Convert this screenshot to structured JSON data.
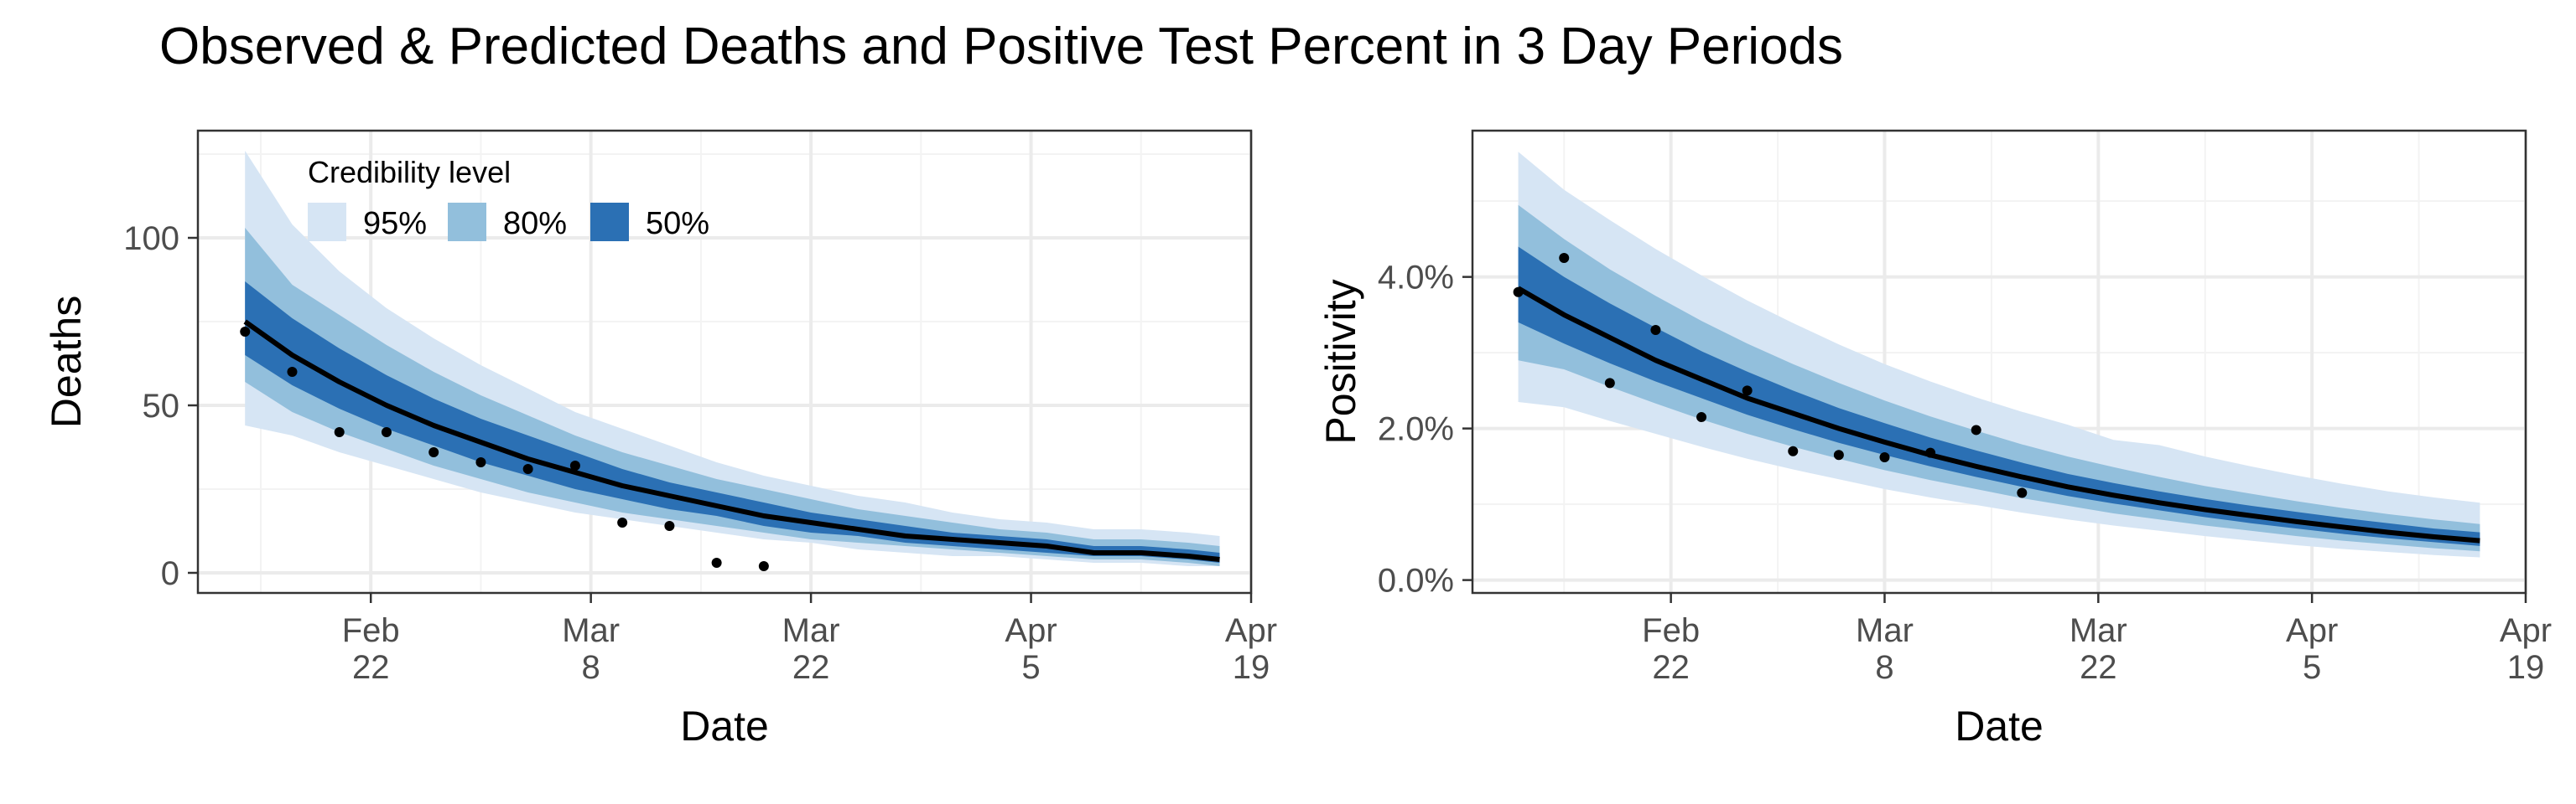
{
  "figure": {
    "title": "Observed & Predicted Deaths and Positive Test Percent in 3 Day Periods"
  },
  "colors": {
    "band_95": "#d6e5f4",
    "band_80": "#92bfdc",
    "band_50": "#2b70b4",
    "median_line": "#000000",
    "points": "#000000",
    "grid_major": "#ebebeb",
    "grid_minor": "#f3f3f3",
    "panel_border": "#333333",
    "tick_text": "#4d4d4d"
  },
  "legend": {
    "title": "Credibility level",
    "placement": "top-left inside deaths panel",
    "items": [
      {
        "label": "95%",
        "color_key": "band_95"
      },
      {
        "label": "80%",
        "color_key": "band_80"
      },
      {
        "label": "50%",
        "color_key": "band_50"
      }
    ]
  },
  "chart_data": [
    {
      "id": "deaths",
      "type": "area",
      "xlabel": "Date",
      "ylabel": "Deaths",
      "x_ticks": [
        {
          "date": "2021-02-22",
          "label": [
            "Feb",
            "22"
          ]
        },
        {
          "date": "2021-03-08",
          "label": [
            "Mar",
            "8"
          ]
        },
        {
          "date": "2021-03-22",
          "label": [
            "Mar",
            "22"
          ]
        },
        {
          "date": "2021-04-05",
          "label": [
            "Apr",
            "5"
          ]
        },
        {
          "date": "2021-04-19",
          "label": [
            "Apr",
            "19"
          ]
        }
      ],
      "xlim": [
        "2021-02-11",
        "2021-04-19"
      ],
      "ylim": [
        -6,
        132
      ],
      "y_ticks": [
        {
          "value": 0,
          "label": "0"
        },
        {
          "value": 50,
          "label": "50"
        },
        {
          "value": 100,
          "label": "100"
        }
      ],
      "grid": true,
      "x": [
        "2021-02-14",
        "2021-02-17",
        "2021-02-20",
        "2021-02-23",
        "2021-02-26",
        "2021-03-01",
        "2021-03-04",
        "2021-03-07",
        "2021-03-10",
        "2021-03-13",
        "2021-03-16",
        "2021-03-19",
        "2021-03-22",
        "2021-03-25",
        "2021-03-28",
        "2021-03-31",
        "2021-04-03",
        "2021-04-06",
        "2021-04-09",
        "2021-04-12",
        "2021-04-15",
        "2021-04-17"
      ],
      "median": [
        75,
        65,
        57,
        50,
        44,
        39,
        34,
        30,
        26,
        23,
        20,
        17,
        15,
        13,
        11,
        10,
        9,
        8,
        6,
        6,
        5,
        4
      ],
      "band_50": {
        "lower": [
          65,
          56,
          49,
          43,
          38,
          33,
          29,
          25,
          22,
          19,
          17,
          14,
          12,
          11,
          9,
          8,
          7,
          6,
          5,
          5,
          4,
          3
        ],
        "upper": [
          87,
          76,
          67,
          59,
          52,
          46,
          41,
          36,
          31,
          27,
          24,
          21,
          18,
          16,
          14,
          12,
          11,
          10,
          8,
          8,
          7,
          6
        ]
      },
      "band_80": {
        "lower": [
          57,
          48,
          42,
          37,
          32,
          28,
          24,
          21,
          18,
          16,
          14,
          12,
          10,
          9,
          8,
          7,
          6,
          5,
          4,
          4,
          3,
          2
        ],
        "upper": [
          103,
          86,
          77,
          68,
          60,
          53,
          47,
          41,
          36,
          32,
          28,
          25,
          22,
          19,
          17,
          15,
          13,
          12,
          10,
          10,
          9,
          8
        ]
      },
      "band_95": {
        "lower": [
          44,
          41,
          36,
          32,
          28,
          24,
          21,
          18,
          16,
          14,
          12,
          10,
          9,
          7,
          6,
          5,
          5,
          4,
          3,
          3,
          2,
          2
        ],
        "upper": [
          126,
          104,
          90,
          79,
          70,
          62,
          55,
          48,
          43,
          38,
          33,
          29,
          26,
          23,
          21,
          18,
          16,
          15,
          13,
          13,
          12,
          11
        ]
      },
      "observed": {
        "x": [
          "2021-02-14",
          "2021-02-17",
          "2021-02-20",
          "2021-02-23",
          "2021-02-26",
          "2021-03-01",
          "2021-03-04",
          "2021-03-07",
          "2021-03-10",
          "2021-03-13",
          "2021-03-16",
          "2021-03-19"
        ],
        "y": [
          72,
          60,
          42,
          42,
          36,
          33,
          31,
          32,
          15,
          14,
          3,
          2
        ]
      }
    },
    {
      "id": "positivity",
      "type": "area",
      "xlabel": "Date",
      "ylabel": "Positivity",
      "x_ticks": [
        {
          "date": "2021-02-22",
          "label": [
            "Feb",
            "22"
          ]
        },
        {
          "date": "2021-03-08",
          "label": [
            "Mar",
            "8"
          ]
        },
        {
          "date": "2021-03-22",
          "label": [
            "Mar",
            "22"
          ]
        },
        {
          "date": "2021-04-05",
          "label": [
            "Apr",
            "5"
          ]
        },
        {
          "date": "2021-04-19",
          "label": [
            "Apr",
            "19"
          ]
        }
      ],
      "xlim": [
        "2021-02-09",
        "2021-04-19"
      ],
      "ylim": [
        -0.0017,
        0.0593
      ],
      "y_ticks": [
        {
          "value": 0,
          "label": "0.0%"
        },
        {
          "value": 0.02,
          "label": "2.0%"
        },
        {
          "value": 0.04,
          "label": "4.0%"
        }
      ],
      "grid": true,
      "x": [
        "2021-02-12",
        "2021-02-15",
        "2021-02-18",
        "2021-02-21",
        "2021-02-24",
        "2021-02-27",
        "2021-03-02",
        "2021-03-05",
        "2021-03-08",
        "2021-03-11",
        "2021-03-14",
        "2021-03-17",
        "2021-03-20",
        "2021-03-23",
        "2021-03-26",
        "2021-03-29",
        "2021-04-01",
        "2021-04-04",
        "2021-04-07",
        "2021-04-10",
        "2021-04-13",
        "2021-04-16"
      ],
      "median": [
        0.0385,
        0.035,
        0.032,
        0.029,
        0.0265,
        0.024,
        0.022,
        0.02,
        0.0182,
        0.0165,
        0.015,
        0.0136,
        0.0123,
        0.0112,
        0.0102,
        0.0093,
        0.0085,
        0.0077,
        0.007,
        0.0063,
        0.0057,
        0.0052
      ],
      "band_50": {
        "lower": [
          0.034,
          0.0312,
          0.0286,
          0.0262,
          0.024,
          0.0218,
          0.0199,
          0.0181,
          0.0165,
          0.015,
          0.0136,
          0.0123,
          0.0111,
          0.0101,
          0.0092,
          0.0083,
          0.0075,
          0.0068,
          0.0061,
          0.0055,
          0.005,
          0.0045
        ],
        "upper": [
          0.044,
          0.04,
          0.0365,
          0.0333,
          0.0302,
          0.0275,
          0.025,
          0.0227,
          0.0207,
          0.0188,
          0.0171,
          0.0155,
          0.014,
          0.0128,
          0.0117,
          0.0107,
          0.0098,
          0.009,
          0.0082,
          0.0075,
          0.0068,
          0.0063
        ]
      },
      "band_80": {
        "lower": [
          0.029,
          0.0278,
          0.0255,
          0.0233,
          0.0212,
          0.0193,
          0.0176,
          0.016,
          0.0145,
          0.0132,
          0.012,
          0.0108,
          0.0098,
          0.0088,
          0.008,
          0.0072,
          0.0065,
          0.0058,
          0.0052,
          0.0047,
          0.0042,
          0.0038
        ],
        "upper": [
          0.0495,
          0.045,
          0.041,
          0.0375,
          0.0342,
          0.0312,
          0.0285,
          0.026,
          0.0237,
          0.0216,
          0.0197,
          0.0179,
          0.0163,
          0.0149,
          0.0136,
          0.0124,
          0.0114,
          0.0104,
          0.0095,
          0.0087,
          0.008,
          0.0074
        ]
      },
      "band_95": {
        "lower": [
          0.0235,
          0.0228,
          0.021,
          0.0193,
          0.0176,
          0.016,
          0.0146,
          0.0133,
          0.012,
          0.0109,
          0.0099,
          0.0089,
          0.008,
          0.0072,
          0.0065,
          0.0058,
          0.0052,
          0.0046,
          0.0041,
          0.0037,
          0.0033,
          0.003
        ],
        "upper": [
          0.0565,
          0.0515,
          0.0475,
          0.0437,
          0.0402,
          0.0369,
          0.0339,
          0.0311,
          0.0285,
          0.0262,
          0.0241,
          0.0222,
          0.0205,
          0.0185,
          0.0178,
          0.0163,
          0.015,
          0.0138,
          0.0127,
          0.0117,
          0.0109,
          0.0102
        ]
      },
      "observed": {
        "x": [
          "2021-02-12",
          "2021-02-15",
          "2021-02-18",
          "2021-02-21",
          "2021-02-24",
          "2021-02-27",
          "2021-03-02",
          "2021-03-05",
          "2021-03-08",
          "2021-03-11",
          "2021-03-14",
          "2021-03-17"
        ],
        "y": [
          0.038,
          0.0425,
          0.026,
          0.033,
          0.0215,
          0.025,
          0.017,
          0.0165,
          0.0162,
          0.0168,
          0.0198,
          0.0115
        ]
      }
    }
  ]
}
